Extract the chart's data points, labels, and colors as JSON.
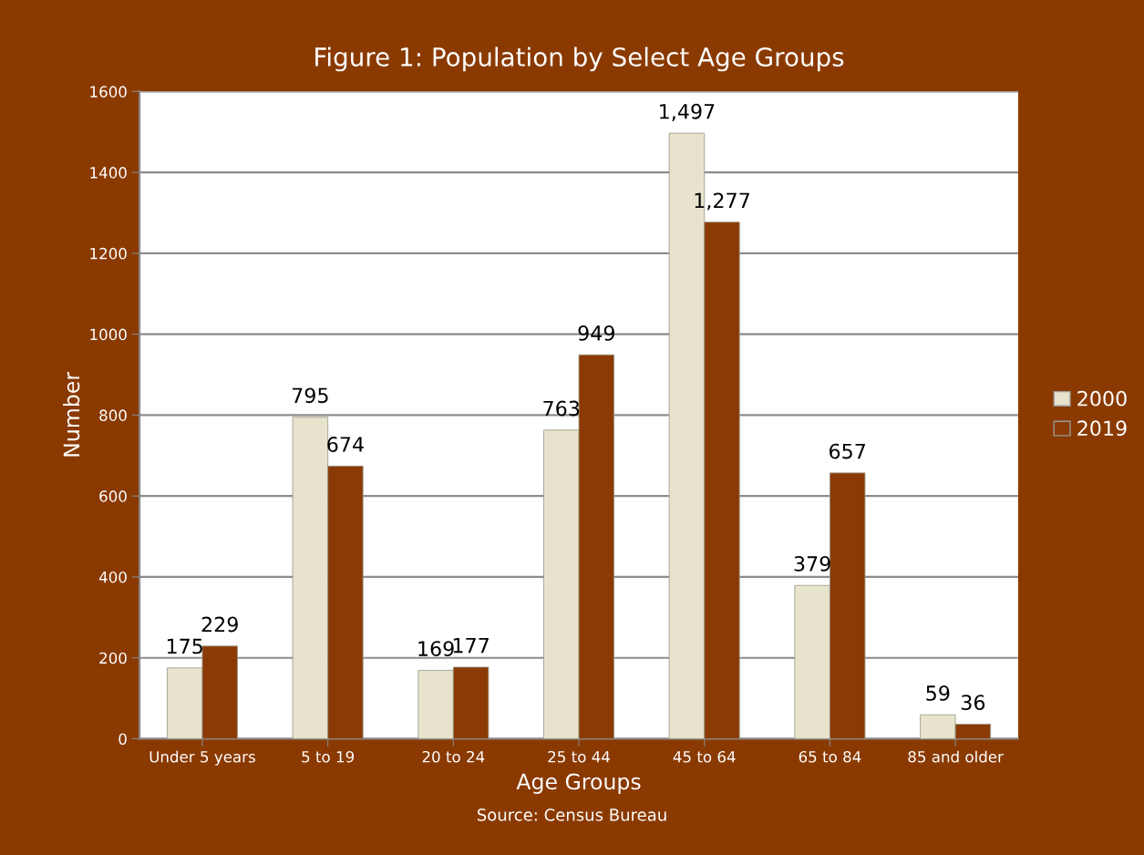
{
  "chart_data": {
    "type": "bar",
    "title": "Figure 1: Population by Select Age Groups",
    "xlabel": "Age Groups",
    "ylabel": "Number",
    "annotations": [
      "Source: Census Bureau"
    ],
    "categories": [
      "Under 5 years",
      "5 to 19",
      "20 to 24",
      "25 to 44",
      "45 to 64",
      "65 to 84",
      "85 and older"
    ],
    "series": [
      {
        "name": "2000",
        "color": "#e8e3cc",
        "values": [
          175,
          795,
          169,
          763,
          1497,
          379,
          59
        ],
        "value_labels": [
          "175",
          "795",
          "169",
          "763",
          "1,497",
          "379",
          "59"
        ]
      },
      {
        "name": "2019",
        "color": "#8b3a06",
        "values": [
          229,
          674,
          177,
          949,
          1277,
          657,
          36
        ],
        "value_labels": [
          "229",
          "674",
          "177",
          "949",
          "1,277",
          "657",
          "36"
        ]
      }
    ],
    "ylim": [
      0,
      1600
    ],
    "yticks": [
      0,
      200,
      400,
      600,
      800,
      1000,
      1200,
      1400,
      1600
    ],
    "grid": "y",
    "legend": "right"
  }
}
